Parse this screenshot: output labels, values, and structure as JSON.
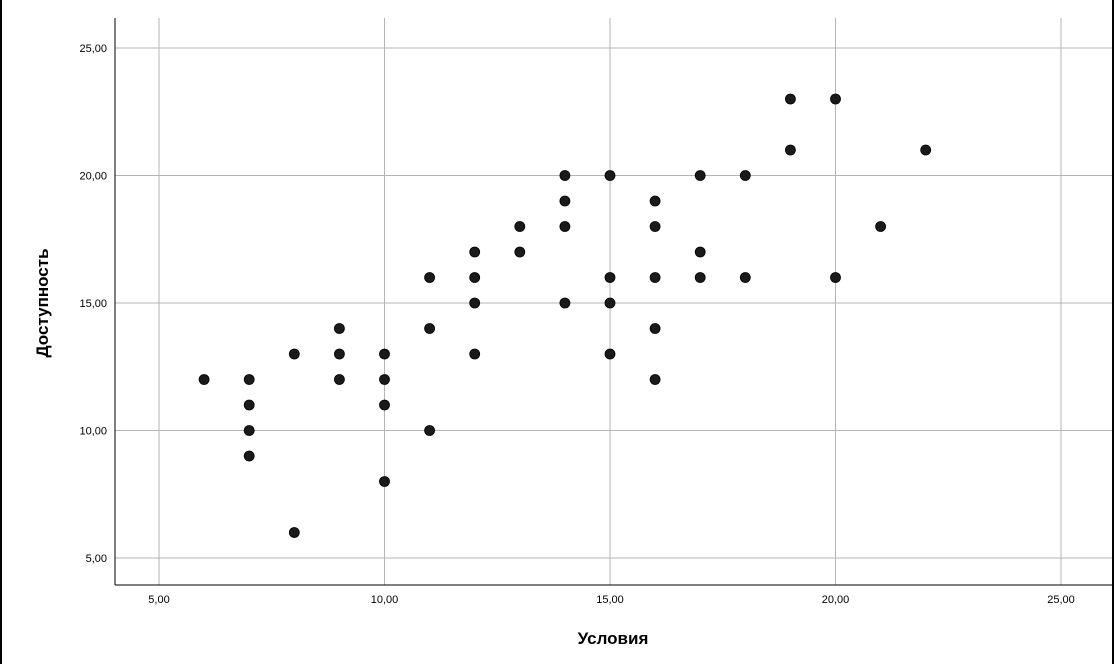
{
  "chart_data": {
    "type": "scatter",
    "title": "",
    "xlabel": "Условия",
    "ylabel": "Доступность",
    "xlim": [
      4,
      26.2
    ],
    "ylim": [
      4,
      26.2
    ],
    "x_ticks": [
      5,
      10,
      15,
      20,
      25
    ],
    "y_ticks": [
      5,
      10,
      15,
      20,
      25
    ],
    "x_tick_labels": [
      "5,00",
      "10,00",
      "15,00",
      "20,00",
      "25,00"
    ],
    "y_tick_labels": [
      "5,00",
      "10,00",
      "15,00",
      "20,00",
      "25,00"
    ],
    "grid": true,
    "legend": "none",
    "point_color": "#1a1a1a",
    "grid_color": "#b5b5b5",
    "points": [
      {
        "x": 6,
        "y": 12
      },
      {
        "x": 7,
        "y": 12
      },
      {
        "x": 7,
        "y": 11
      },
      {
        "x": 7,
        "y": 10
      },
      {
        "x": 7,
        "y": 9
      },
      {
        "x": 8,
        "y": 13
      },
      {
        "x": 8,
        "y": 6
      },
      {
        "x": 9,
        "y": 14
      },
      {
        "x": 9,
        "y": 13
      },
      {
        "x": 9,
        "y": 12
      },
      {
        "x": 10,
        "y": 13
      },
      {
        "x": 10,
        "y": 12
      },
      {
        "x": 10,
        "y": 11
      },
      {
        "x": 10,
        "y": 8
      },
      {
        "x": 11,
        "y": 16
      },
      {
        "x": 11,
        "y": 14
      },
      {
        "x": 11,
        "y": 10
      },
      {
        "x": 12,
        "y": 17
      },
      {
        "x": 12,
        "y": 16
      },
      {
        "x": 12,
        "y": 15
      },
      {
        "x": 12,
        "y": 13
      },
      {
        "x": 13,
        "y": 18
      },
      {
        "x": 13,
        "y": 17
      },
      {
        "x": 14,
        "y": 20
      },
      {
        "x": 14,
        "y": 19
      },
      {
        "x": 14,
        "y": 18
      },
      {
        "x": 14,
        "y": 15
      },
      {
        "x": 15,
        "y": 20
      },
      {
        "x": 15,
        "y": 16
      },
      {
        "x": 15,
        "y": 15
      },
      {
        "x": 15,
        "y": 13
      },
      {
        "x": 16,
        "y": 19
      },
      {
        "x": 16,
        "y": 18
      },
      {
        "x": 16,
        "y": 16
      },
      {
        "x": 16,
        "y": 14
      },
      {
        "x": 16,
        "y": 12
      },
      {
        "x": 17,
        "y": 20
      },
      {
        "x": 17,
        "y": 17
      },
      {
        "x": 17,
        "y": 16
      },
      {
        "x": 18,
        "y": 20
      },
      {
        "x": 18,
        "y": 16
      },
      {
        "x": 19,
        "y": 23
      },
      {
        "x": 19,
        "y": 21
      },
      {
        "x": 20,
        "y": 23
      },
      {
        "x": 20,
        "y": 16
      },
      {
        "x": 21,
        "y": 18
      },
      {
        "x": 22,
        "y": 21
      }
    ]
  }
}
